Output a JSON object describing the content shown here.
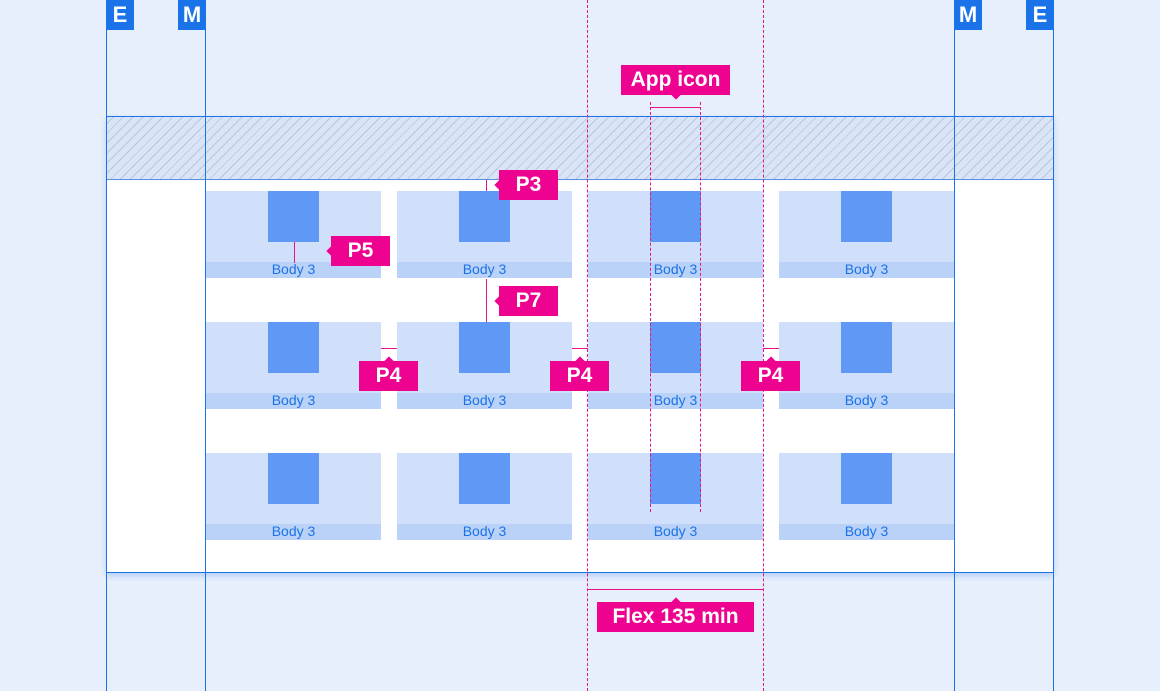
{
  "keylines": {
    "edge": "E",
    "margin": "M"
  },
  "tiles": [
    "Body 3",
    "Body 3",
    "Body 3",
    "Body 3",
    "Body 3",
    "Body 3",
    "Body 3",
    "Body 3",
    "Body 3",
    "Body 3",
    "Body 3",
    "Body 3"
  ],
  "annotations": {
    "app_icon": "App icon",
    "p3": "P3",
    "p5": "P5",
    "p7": "P7",
    "p4": "P4",
    "flex": "Flex 135 min"
  },
  "colors": {
    "keyline": "#1a73e8",
    "annotation": "#ee0290",
    "tile": "#d0e0fa",
    "icon": "#5f98f5"
  }
}
